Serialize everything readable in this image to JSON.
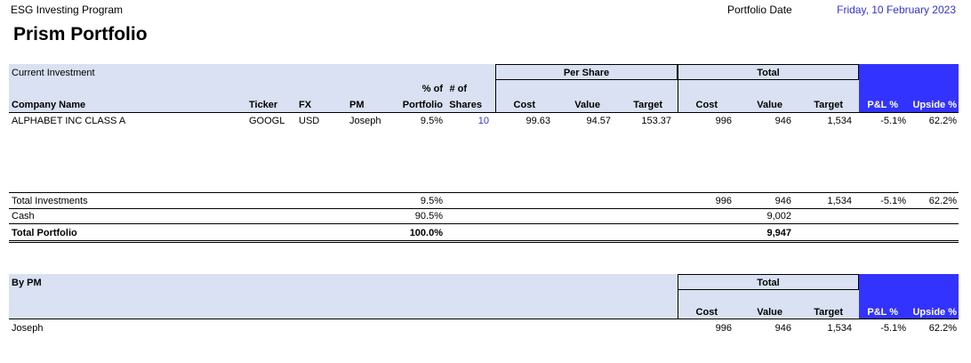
{
  "header": {
    "program": "ESG Investing Program",
    "title": "Prism Portfolio",
    "portfolio_date_label": "Portfolio Date",
    "portfolio_date_value": "Friday, 10 February 2023"
  },
  "investments": {
    "section_label": "Current Investment",
    "per_share_label": "Per Share",
    "total_label": "Total",
    "columns": {
      "company": "Company Name",
      "ticker": "Ticker",
      "fx": "FX",
      "pm": "PM",
      "pct_top": "% of",
      "pct_bottom": "Portfolio",
      "shares_top": "# of",
      "shares_bottom": "Shares",
      "ps_cost": "Cost",
      "ps_value": "Value",
      "ps_target": "Target",
      "t_cost": "Cost",
      "t_value": "Value",
      "t_target": "Target",
      "pl": "P&L %",
      "upside": "Upside %"
    },
    "rows": [
      {
        "company": "ALPHABET INC CLASS A",
        "ticker": "GOOGL",
        "fx": "USD",
        "pm": "Joseph",
        "pct": "9.5%",
        "shares": "10",
        "ps_cost": "99.63",
        "ps_value": "94.57",
        "ps_target": "153.37",
        "t_cost": "996",
        "t_value": "946",
        "t_target": "1,534",
        "pl": "-5.1%",
        "upside": "62.2%"
      }
    ],
    "totals": {
      "total_inv_label": "Total Investments",
      "total_inv_pct": "9.5%",
      "total_inv_cost": "996",
      "total_inv_value": "946",
      "total_inv_target": "1,534",
      "total_inv_pl": "-5.1%",
      "total_inv_upside": "62.2%",
      "cash_label": "Cash",
      "cash_pct": "90.5%",
      "cash_value": "9,002",
      "portfolio_label": "Total Portfolio",
      "portfolio_pct": "100.0%",
      "portfolio_value": "9,947"
    }
  },
  "by_pm": {
    "section_label": "By PM",
    "total_label": "Total",
    "columns": {
      "cost": "Cost",
      "value": "Value",
      "target": "Target",
      "pl": "P&L %",
      "upside": "Upside %"
    },
    "rows": [
      {
        "pm": "Joseph",
        "cost": "996",
        "value": "946",
        "target": "1,534",
        "pl": "-5.1%",
        "upside": "62.2%"
      }
    ]
  },
  "colors": {
    "header_fill": "#d9e1f2",
    "accent_fill": "#3333ff",
    "date_text": "#3333cc",
    "shares_text": "#3333cc"
  }
}
